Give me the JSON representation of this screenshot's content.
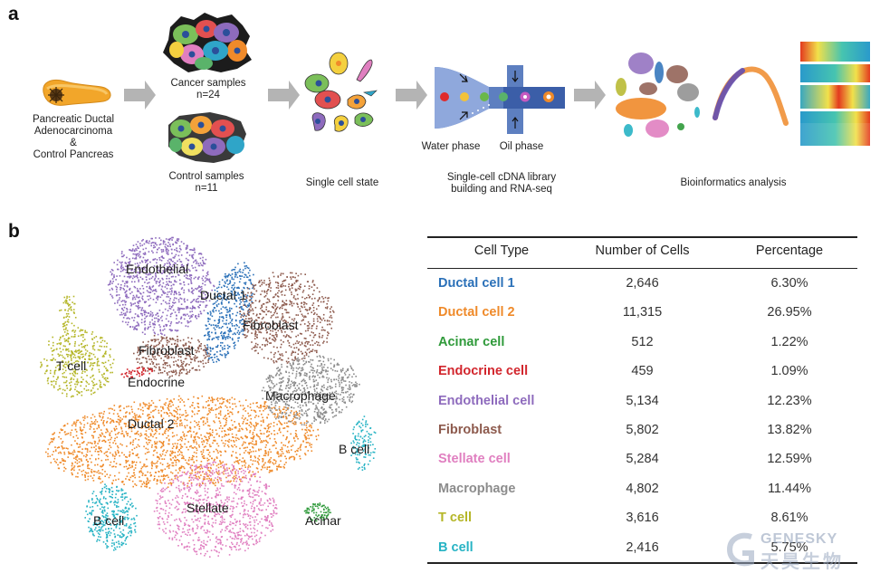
{
  "panels": {
    "a": "a",
    "b": "b"
  },
  "workflow": {
    "tissue_line1": "Pancreatic Ductal",
    "tissue_line2": "Adenocarcinoma",
    "tissue_line3": "&",
    "tissue_line4": "Control Pancreas",
    "cancer_line1": "Cancer samples",
    "cancer_line2": "n=24",
    "control_line1": "Control samples",
    "control_line2": "n=11",
    "single_cell": "Single cell state",
    "water_phase": "Water phase",
    "oil_phase": "Oil phase",
    "library_line1": "Single-cell cDNA library",
    "library_line2": "building and RNA-seq",
    "bioinfo": "Bioinformatics analysis"
  },
  "tsne": {
    "labels": {
      "endothelial": "Endothelial",
      "ductal1": "Ductal 1",
      "fibroblast_right": "Fibroblast",
      "fibroblast_mid": "Fibroblast",
      "tcell": "T cell",
      "endocrine": "Endocrine",
      "macrophage": "Macrophage",
      "ductal2": "Ductal 2",
      "bcell_right": "B cell",
      "bcell_left": "B cell",
      "stellate": "Stellate",
      "acinar": "Acinar"
    },
    "colors": {
      "ductal1": "#2a70b8",
      "ductal2": "#ef8a2a",
      "acinar": "#2f9a3a",
      "endocrine": "#d2262d",
      "endothelial": "#8e6bbd",
      "fibroblast": "#8d5a4d",
      "stellate": "#e07fc0",
      "macrophage": "#8c8c8c",
      "tcell": "#b5b628",
      "bcell": "#27b3c4"
    }
  },
  "table": {
    "headers": {
      "type": "Cell Type",
      "count": "Number of Cells",
      "pct": "Percentage"
    },
    "rows": [
      {
        "type": "Ductal cell 1",
        "count": "2,646",
        "pct": "6.30%",
        "color": "#2a70b8"
      },
      {
        "type": "Ductal cell 2",
        "count": "11,315",
        "pct": "26.95%",
        "color": "#ef8a2a"
      },
      {
        "type": "Acinar cell",
        "count": "512",
        "pct": "1.22%",
        "color": "#2f9a3a"
      },
      {
        "type": "Endocrine cell",
        "count": "459",
        "pct": "1.09%",
        "color": "#d2262d"
      },
      {
        "type": "Endothelial cell",
        "count": "5,134",
        "pct": "12.23%",
        "color": "#8e6bbd"
      },
      {
        "type": "Fibroblast",
        "count": "5,802",
        "pct": "13.82%",
        "color": "#8d5a4d"
      },
      {
        "type": "Stellate cell",
        "count": "5,284",
        "pct": "12.59%",
        "color": "#e07fc0"
      },
      {
        "type": "Macrophage",
        "count": "4,802",
        "pct": "11.44%",
        "color": "#8c8c8c"
      },
      {
        "type": "T cell",
        "count": "3,616",
        "pct": "8.61%",
        "color": "#b5b628"
      },
      {
        "type": "B cell",
        "count": "2,416",
        "pct": "5.75%",
        "color": "#27b3c4"
      }
    ]
  },
  "watermark": {
    "en": "GENESKY",
    "cn": "天昊生物"
  }
}
